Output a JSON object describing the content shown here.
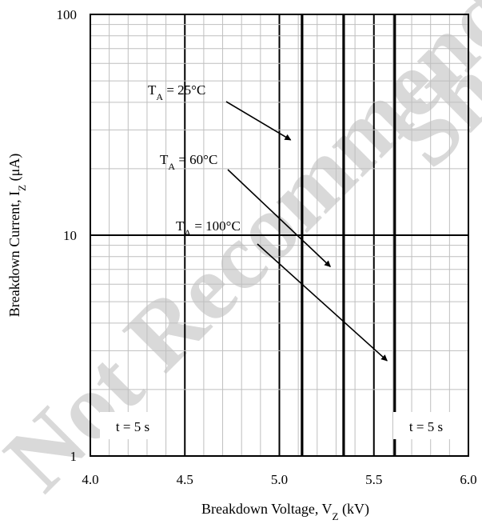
{
  "chart_data": {
    "type": "line",
    "xlabel": "Breakdown Voltage, V",
    "xlabel_sub": "Z",
    "xlabel_unit": " (kV)",
    "ylabel": "Breakdown Current, I",
    "ylabel_sub": "Z",
    "ylabel_unit": " (μA)",
    "xlim": [
      4.0,
      6.0
    ],
    "ylim": [
      1,
      100
    ],
    "y_scale": "log",
    "grid": true,
    "x_ticks": [
      4.0,
      4.5,
      5.0,
      5.5,
      6.0
    ],
    "x_tick_labels": [
      "4.0",
      "4.5",
      "5.0",
      "5.5",
      "6.0"
    ],
    "y_ticks": [
      1,
      10,
      100
    ],
    "y_tick_labels": [
      "1",
      "10",
      "100"
    ],
    "series": [
      {
        "name": "TA = 25°C",
        "label_main": "T",
        "label_sub": "A",
        "label_rest": " = 25°C",
        "x": [
          5.12,
          5.12
        ],
        "y": [
          1,
          100
        ]
      },
      {
        "name": "TA = 60°C",
        "label_main": "T",
        "label_sub": "A",
        "label_rest": " = 60°C",
        "x": [
          5.34,
          5.34
        ],
        "y": [
          1,
          100
        ]
      },
      {
        "name": "TA = 100°C",
        "label_main": "T",
        "label_sub": "A",
        "label_rest": " = 100°C",
        "x": [
          5.61,
          5.61
        ],
        "y": [
          1,
          100
        ]
      }
    ],
    "annotations": [
      {
        "text": "t = 5 s",
        "position": "bottom-left"
      },
      {
        "text": "t = 5 s",
        "position": "bottom-right"
      }
    ],
    "watermark": [
      "Not Recommended",
      "Sh"
    ]
  }
}
